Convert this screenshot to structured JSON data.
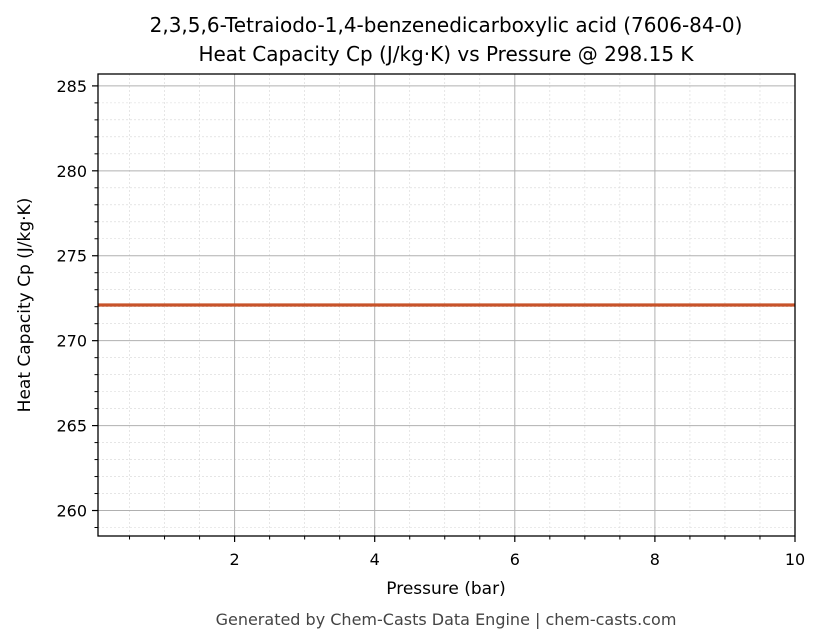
{
  "chart_data": {
    "type": "line",
    "title": "2,3,5,6-Tetraiodo-1,4-benzenedicarboxylic acid (7606-84-0)",
    "subtitle": "Heat Capacity Cp (J/kg·K) vs Pressure @ 298.15 K",
    "xlabel": "Pressure (bar)",
    "ylabel": "Heat Capacity Cp (J/kg·K)",
    "xlim": [
      0.05,
      10
    ],
    "ylim": [
      258.5,
      285.7
    ],
    "x_ticks": [
      2,
      4,
      6,
      8,
      10
    ],
    "y_ticks": [
      260,
      265,
      270,
      275,
      280,
      285
    ],
    "x_minor_step": 0.5,
    "y_minor_step": 1,
    "grid": true,
    "legend": "none",
    "series": [
      {
        "color": "#c8532a",
        "x": [
          0.05,
          10
        ],
        "y": [
          272.1,
          272.1
        ]
      }
    ]
  },
  "footer": "Generated by Chem-Casts Data Engine | chem-casts.com"
}
